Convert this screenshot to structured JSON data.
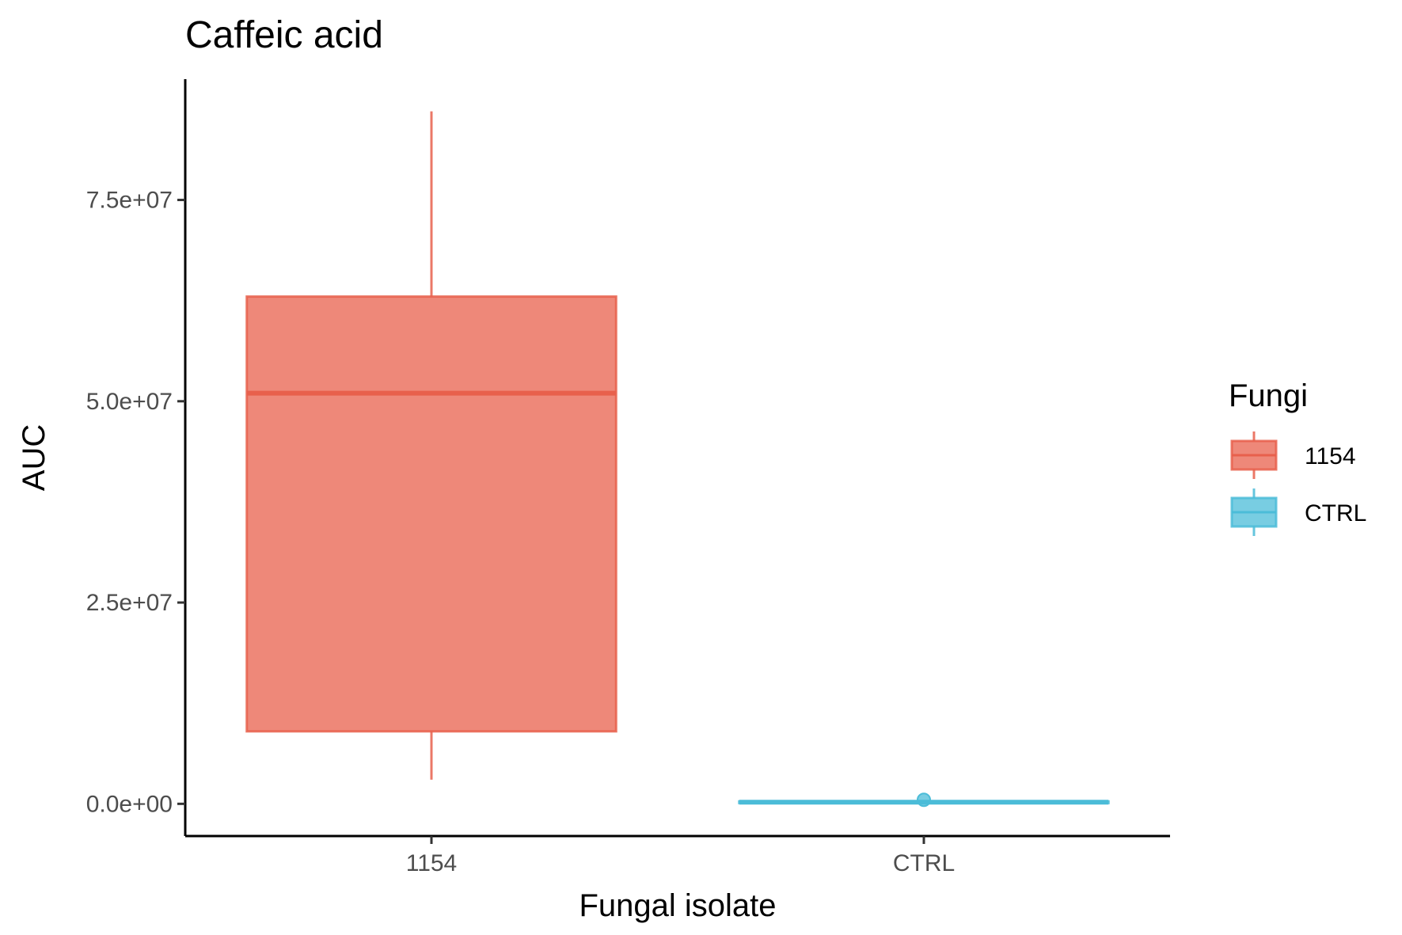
{
  "chart_data": {
    "type": "box",
    "title": "Caffeic acid",
    "xlabel": "Fungal isolate",
    "ylabel": "AUC",
    "categories": [
      "1154",
      "CTRL"
    ],
    "ylim": [
      -4000000,
      90000000
    ],
    "yticks": [
      0,
      25000000,
      50000000,
      75000000
    ],
    "ytick_labels": [
      "0.0e+00",
      "2.5e+07",
      "5.0e+07",
      "7.5e+07"
    ],
    "series": [
      {
        "name": "1154",
        "category": "1154",
        "whisker_low": 3000000,
        "q1": 9000000,
        "median": 51000000,
        "q3": 63000000,
        "whisker_high": 86000000,
        "outliers": [],
        "color": "#E8604C"
      },
      {
        "name": "CTRL",
        "category": "CTRL",
        "whisker_low": 50000,
        "q1": 100000,
        "median": 200000,
        "q3": 300000,
        "whisker_high": 400000,
        "outliers": [
          500000
        ],
        "color": "#4BBCD8"
      }
    ],
    "legend": {
      "title": "Fungi",
      "position": "right",
      "entries": [
        "1154",
        "CTRL"
      ]
    },
    "grid": false
  }
}
